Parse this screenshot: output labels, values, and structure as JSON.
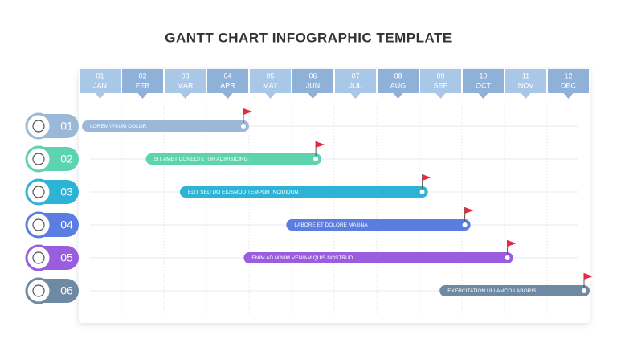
{
  "chart_data": {
    "type": "gantt",
    "title": "GANTT CHART INFOGRAPHIC TEMPLATE",
    "xlim": [
      0,
      12
    ],
    "columns": [
      {
        "number": "01",
        "label": "JAN"
      },
      {
        "number": "02",
        "label": "FEB"
      },
      {
        "number": "03",
        "label": "MAR"
      },
      {
        "number": "04",
        "label": "APR"
      },
      {
        "number": "05",
        "label": "MAY"
      },
      {
        "number": "06",
        "label": "JUN"
      },
      {
        "number": "07",
        "label": "JUL"
      },
      {
        "number": "08",
        "label": "AUG"
      },
      {
        "number": "09",
        "label": "SEP"
      },
      {
        "number": "10",
        "label": "OCT"
      },
      {
        "number": "11",
        "label": "NOV"
      },
      {
        "number": "12",
        "label": "DEC"
      }
    ],
    "tasks": [
      {
        "number": "01",
        "label": "LOREM IPSUM DOLOR",
        "start": 0,
        "end": 4,
        "color": "#9bb8d8"
      },
      {
        "number": "02",
        "label": "SIT AMET CONECTETUR ADIPISICING",
        "start": 1.5,
        "end": 5.7,
        "color": "#5dd3b0"
      },
      {
        "number": "03",
        "label": "ELIT SED DO EIUSMOD TEMPOR INCIDIDUNT",
        "start": 2.3,
        "end": 8.2,
        "color": "#2db3d5"
      },
      {
        "number": "04",
        "label": "LABORE ET DOLORE MAGNA",
        "start": 4.8,
        "end": 9.2,
        "color": "#5a7ddf"
      },
      {
        "number": "05",
        "label": "ENIM AD MINIM VENIAM QUIS NOSTRUD",
        "start": 3.8,
        "end": 10.2,
        "color": "#9a5de0"
      },
      {
        "number": "06",
        "label": "EXERCITATION ULLAMCO LABORIS",
        "start": 8.4,
        "end": 12,
        "color": "#6e8aa3"
      }
    ]
  }
}
